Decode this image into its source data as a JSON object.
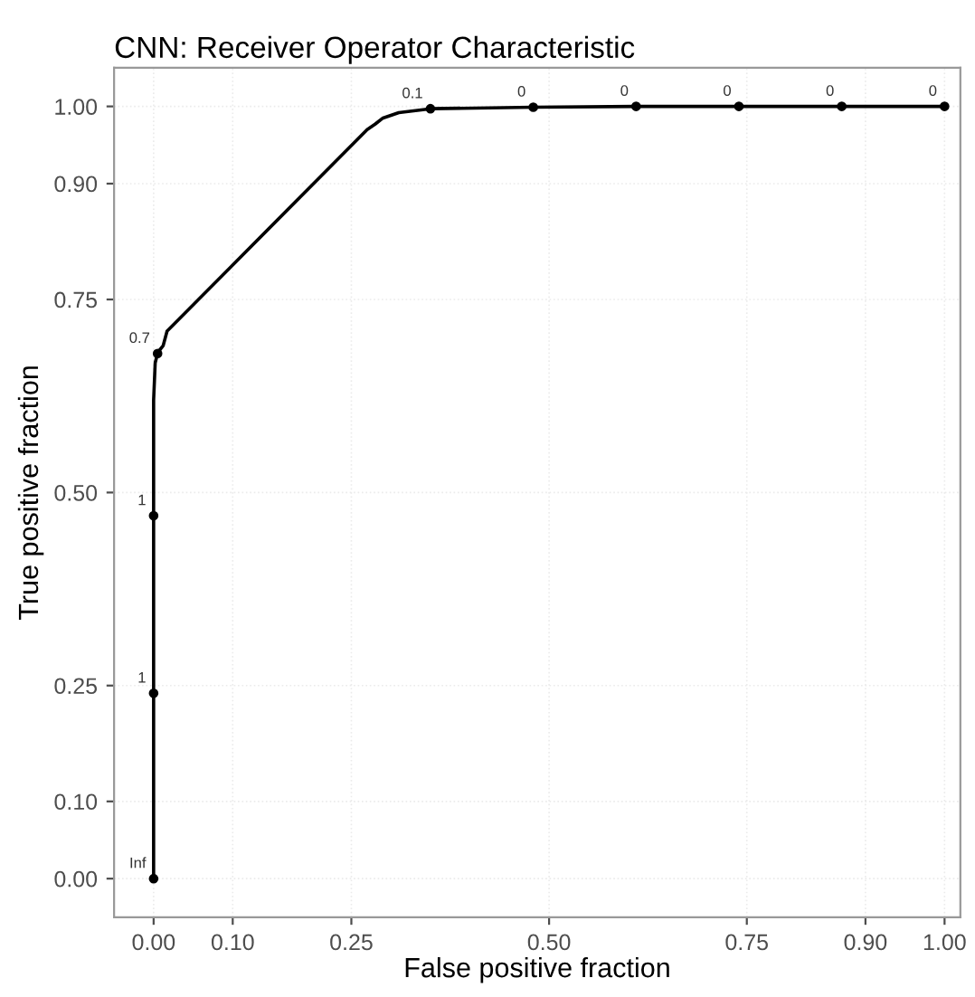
{
  "chart_data": {
    "type": "line",
    "title": "CNN: Receiver Operator Characteristic",
    "xlabel": "False positive fraction",
    "ylabel": "True positive fraction",
    "xlim": [
      -0.05,
      1.02
    ],
    "ylim": [
      -0.05,
      1.05
    ],
    "xticks": [
      {
        "value": 0,
        "label": "0.00"
      },
      {
        "value": 0.1,
        "label": "0.10"
      },
      0.25,
      {
        "value": 0.5,
        "label": "0.50"
      },
      0.75,
      {
        "value": 0.9,
        "label": "0.90"
      },
      {
        "value": 1,
        "label": "1.00"
      }
    ],
    "yticks": [
      {
        "value": 0,
        "label": "0.00"
      },
      {
        "value": 0.1,
        "label": "0.10"
      },
      0.25,
      {
        "value": 0.5,
        "label": "0.50"
      },
      0.75,
      {
        "value": 0.9,
        "label": "0.90"
      },
      {
        "value": 1,
        "label": "1.00"
      }
    ],
    "grid": true,
    "series": [
      {
        "color": "#000000",
        "x": [
          0,
          0,
          0,
          0,
          0.002,
          0.005,
          0.008,
          0.012,
          0.017,
          0.27,
          0.28,
          0.29,
          0.31,
          0.35,
          0.48,
          0.61,
          0.74,
          0.87,
          1.0
        ],
        "values": [
          0,
          0.24,
          0.47,
          0.62,
          0.668,
          0.68,
          0.685,
          0.69,
          0.709,
          0.97,
          0.977,
          0.985,
          0.992,
          0.997,
          0.999,
          1.0,
          1.0,
          1.0,
          1.0
        ],
        "marker": "none",
        "line_style": "solid"
      },
      {
        "type": "scatter",
        "color": "#000000",
        "x": [
          0,
          0,
          0,
          0.005,
          0.35,
          0.48,
          0.61,
          0.74,
          0.87,
          1.0
        ],
        "values": [
          0,
          0.24,
          0.47,
          0.68,
          0.997,
          0.999,
          1.0,
          1.0,
          1.0,
          1.0
        ],
        "marker": "circle"
      }
    ],
    "annotations": [
      {
        "text": "Inf",
        "x": 0,
        "y": 0
      },
      {
        "text": "1",
        "x": 0,
        "y": 0.24
      },
      {
        "text": "1",
        "x": 0,
        "y": 0.47
      },
      {
        "text": "0.7",
        "x": 0.005,
        "y": 0.68
      },
      {
        "text": "0.1",
        "x": 0.35,
        "y": 0.997
      },
      {
        "text": "0",
        "x": 0.48,
        "y": 0.999
      },
      {
        "text": "0",
        "x": 0.61,
        "y": 1.0
      },
      {
        "text": "0",
        "x": 0.74,
        "y": 1.0
      },
      {
        "text": "0",
        "x": 0.87,
        "y": 1.0
      },
      {
        "text": "0",
        "x": 1.0,
        "y": 1.0
      }
    ]
  }
}
